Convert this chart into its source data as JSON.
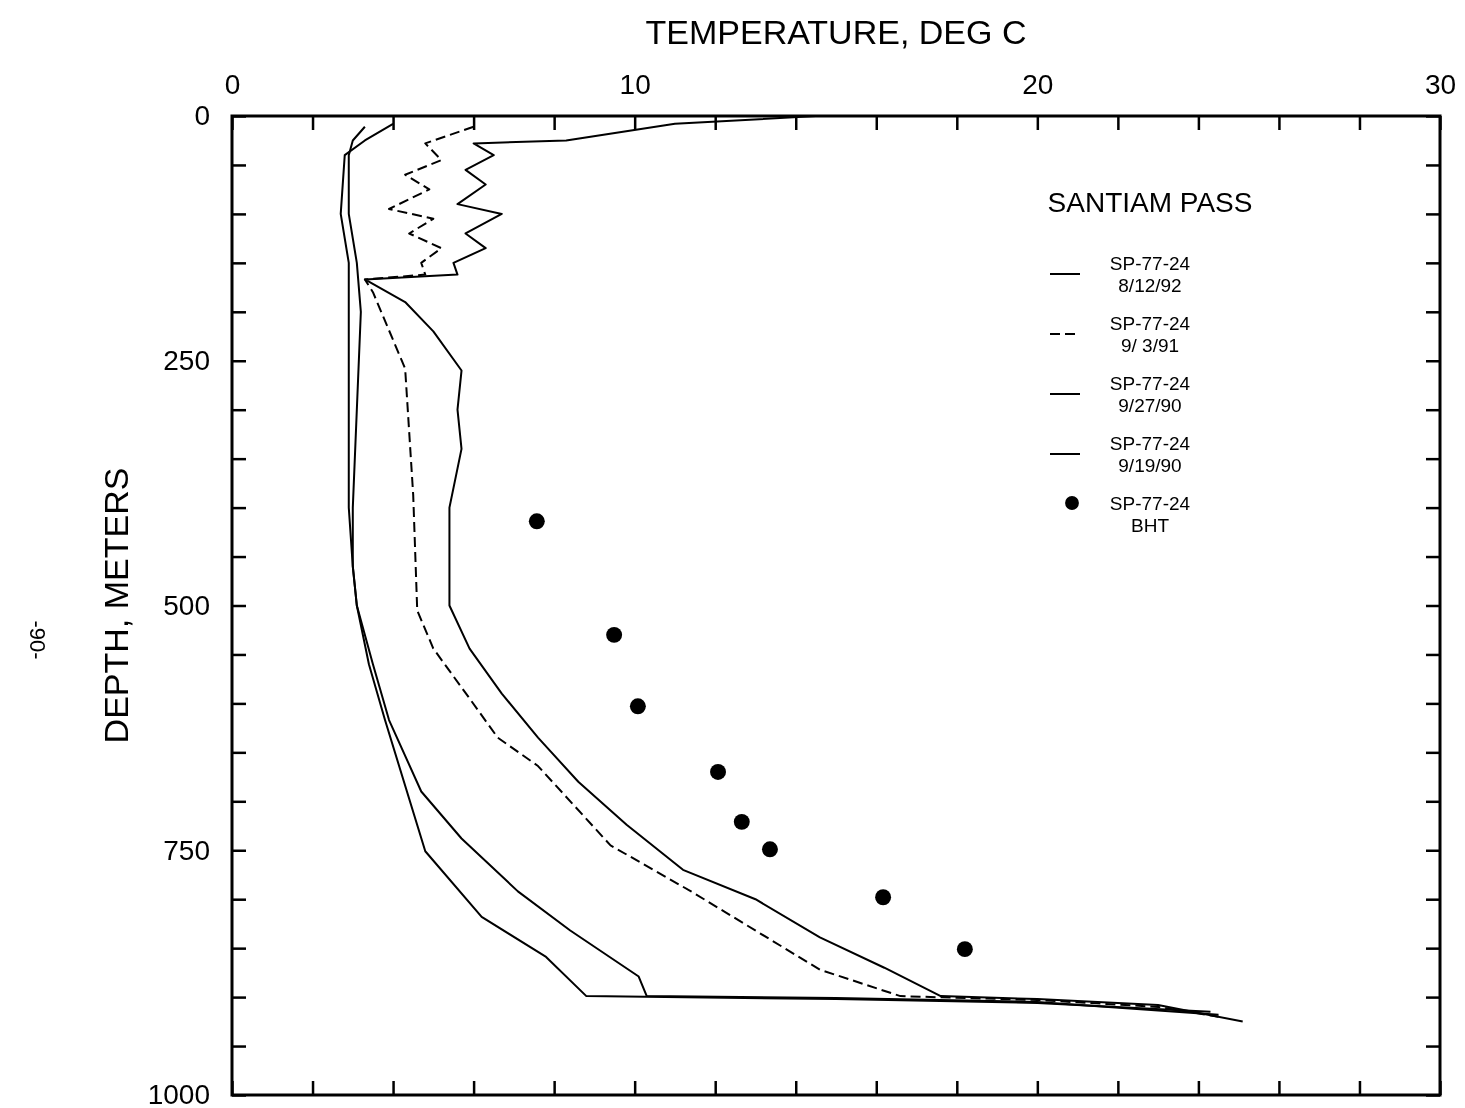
{
  "chart_data": {
    "type": "line",
    "xlabel": "TEMPERATURE, DEG C",
    "ylabel": "DEPTH, METERS",
    "legend_title": "SANTIAM PASS",
    "legend": "top right",
    "grid": false,
    "marker": "none",
    "xlim": [
      0,
      30
    ],
    "ylim": [
      1000,
      0
    ],
    "xticks": [
      0,
      {
        "value": 2,
        "label": null
      },
      {
        "value": 4,
        "label": null
      },
      {
        "value": 6,
        "label": null
      },
      {
        "value": 8,
        "label": null
      },
      10,
      {
        "value": 12,
        "label": null
      },
      {
        "value": 14,
        "label": null
      },
      {
        "value": 16,
        "label": null
      },
      {
        "value": 18,
        "label": null
      },
      20,
      {
        "value": 22,
        "label": null
      },
      {
        "value": 24,
        "label": null
      },
      {
        "value": 26,
        "label": null
      },
      {
        "value": 28,
        "label": null
      },
      30
    ],
    "yticks": [
      0,
      {
        "value": 50,
        "label": null
      },
      {
        "value": 100,
        "label": null
      },
      {
        "value": 150,
        "label": null
      },
      {
        "value": 200,
        "label": null
      },
      250,
      {
        "value": 300,
        "label": null
      },
      {
        "value": 350,
        "label": null
      },
      {
        "value": 400,
        "label": null
      },
      {
        "value": 450,
        "label": null
      },
      500,
      {
        "value": 550,
        "label": null
      },
      {
        "value": 600,
        "label": null
      },
      {
        "value": 650,
        "label": null
      },
      {
        "value": 700,
        "label": null
      },
      750,
      {
        "value": 800,
        "label": null
      },
      {
        "value": 850,
        "label": null
      },
      {
        "value": 900,
        "label": null
      },
      {
        "value": 950,
        "label": null
      },
      1000
    ],
    "annotations": [
      "-90-"
    ],
    "series": [
      {
        "name": "SP-77-24\n8/12/92",
        "color": "#000000",
        "line_style": "solid",
        "x": [
          14.5,
          11,
          8.3,
          6.0,
          6.5,
          5.8,
          6.3,
          5.6,
          6.7,
          5.8,
          6.3,
          5.5,
          5.6,
          3.3,
          4.3,
          5.0,
          5.7,
          5.6,
          5.7,
          5.4,
          5.4,
          5.9,
          6.7,
          7.6,
          8.6,
          9.8,
          11.2,
          13.0,
          14.6,
          16.2,
          17.6,
          20,
          23,
          25.1
        ],
        "values": [
          0,
          8,
          25,
          28,
          40,
          55,
          70,
          90,
          100,
          120,
          135,
          150,
          162,
          167,
          190,
          220,
          260,
          300,
          340,
          400,
          500,
          544,
          590,
          635,
          680,
          724,
          770,
          800,
          839,
          870,
          899,
          902,
          908,
          925
        ]
      },
      {
        "name": "SP-77-24\n9/ 3/91",
        "color": "#000000",
        "line_style": "dashed",
        "x": [
          6.0,
          4.8,
          5.2,
          4.3,
          4.9,
          3.9,
          5.0,
          4.4,
          5.2,
          4.7,
          4.8,
          3.3,
          3.5,
          4.3,
          4.5,
          4.6,
          5.0,
          5.9,
          6.6,
          7.6,
          9.4,
          11.4,
          14.6,
          16.6,
          20,
          23,
          24.5
        ],
        "values": [
          11,
          28,
          45,
          60,
          75,
          95,
          105,
          120,
          135,
          150,
          162,
          167,
          180,
          258,
          387,
          505,
          544,
          595,
          635,
          664,
          745,
          792,
          872,
          899,
          903,
          910,
          920
        ]
      },
      {
        "name": "SP-77-24\n9/27/90",
        "color": "#000000",
        "line_style": "solid",
        "x": [
          3.3,
          3.0,
          2.9,
          2.9,
          3.1,
          3.2,
          3.1,
          3.0,
          3.0,
          3.1,
          3.5,
          3.9,
          4.7,
          5.7,
          7.1,
          8.4,
          10.1,
          10.3,
          15,
          20,
          24.5
        ],
        "values": [
          11,
          25,
          40,
          100,
          150,
          200,
          300,
          400,
          460,
          500,
          560,
          617,
          690,
          738,
          792,
          832,
          879,
          899,
          901,
          905,
          918
        ]
      },
      {
        "name": "SP-77-24\n9/19/90",
        "color": "#000000",
        "line_style": "solid",
        "x": [
          4.0,
          3.3,
          2.8,
          2.7,
          2.9,
          2.9,
          2.9,
          2.9,
          3.0,
          3.1,
          3.4,
          3.8,
          4.8,
          6.2,
          7.8,
          8.8,
          15,
          20,
          24.3
        ],
        "values": [
          8,
          25,
          40,
          100,
          150,
          200,
          300,
          400,
          460,
          500,
          560,
          617,
          751,
          818,
          859,
          899,
          902,
          906,
          915
        ]
      },
      {
        "name": "SP-77-24\nBHT",
        "type": "scatter",
        "marker": "circle",
        "color": "#000000",
        "x": [
          7.57,
          9.49,
          10.08,
          12.07,
          12.66,
          13.36,
          16.17,
          18.2
        ],
        "values": [
          414,
          530,
          603,
          670,
          721,
          749,
          798,
          851
        ]
      }
    ]
  }
}
